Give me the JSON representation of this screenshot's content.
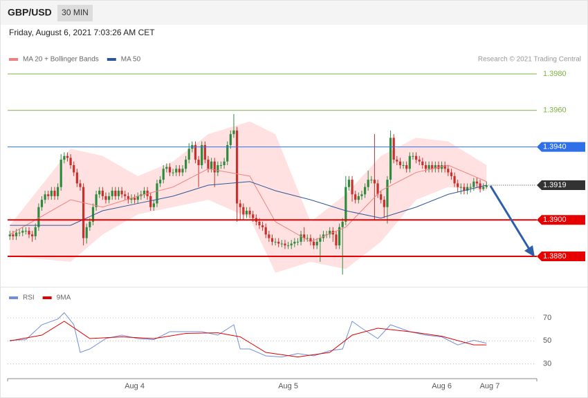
{
  "header": {
    "symbol": "GBP/USD",
    "interval": "30 MIN",
    "date": "Friday, August 6, 2021 7:03:26 AM CET"
  },
  "credit": "Research © 2021 Trading Central",
  "chart_data": [
    {
      "type": "candlestick",
      "xlim": [
        -0.7,
        164.5
      ],
      "ylim": [
        1.3865,
        1.3985
      ],
      "up_color": "#2e8b3e",
      "down_color": "#c9302c",
      "open": [
        1.3891,
        1.3892,
        1.3891,
        1.3893,
        1.3893,
        1.3894,
        1.3894,
        1.3892,
        1.3891,
        1.3896,
        1.3907,
        1.3911,
        1.3914,
        1.3913,
        1.3916,
        1.3913,
        1.3918,
        1.3933,
        1.3935,
        1.3934,
        1.393,
        1.3926,
        1.392,
        1.3918,
        1.389,
        1.3896,
        1.3899,
        1.3907,
        1.3914,
        1.3916,
        1.3913,
        1.3911,
        1.3913,
        1.3916,
        1.3913,
        1.3916,
        1.3914,
        1.3913,
        1.3911,
        1.3912,
        1.3911,
        1.3913,
        1.3914,
        1.3916,
        1.3913,
        1.3907,
        1.3909,
        1.392,
        1.3922,
        1.3928,
        1.3929,
        1.3926,
        1.3926,
        1.3928,
        1.3926,
        1.3928,
        1.3933,
        1.3939,
        1.3941,
        1.3933,
        1.393,
        1.3941,
        1.3933,
        1.3928,
        1.3932,
        1.3926,
        1.393,
        1.393,
        1.3932,
        1.3941,
        1.3947,
        1.3949,
        1.3909,
        1.3907,
        1.3903,
        1.3905,
        1.3903,
        1.3901,
        1.3899,
        1.3897,
        1.3896,
        1.3892,
        1.389,
        1.3888,
        1.3888,
        1.3887,
        1.3887,
        1.3886,
        1.3886,
        1.3887,
        1.3888,
        1.3888,
        1.3892,
        1.389,
        1.389,
        1.3888,
        1.3886,
        1.3888,
        1.389,
        1.3892,
        1.3892,
        1.3894,
        1.3892,
        1.3886,
        1.3896,
        1.3899,
        1.3918,
        1.3922,
        1.3914,
        1.3911,
        1.3913,
        1.3914,
        1.3918,
        1.3922,
        1.3922,
        1.392,
        1.3914,
        1.3911,
        1.3907,
        1.3922,
        1.3945,
        1.3933,
        1.3932,
        1.393,
        1.393,
        1.3928,
        1.3935,
        1.3935,
        1.3933,
        1.3932,
        1.393,
        1.3928,
        1.393,
        1.3928,
        1.393,
        1.3928,
        1.393,
        1.3928,
        1.3926,
        1.3924,
        1.392,
        1.3918,
        1.3918,
        1.3916,
        1.3918,
        1.3918,
        1.3921,
        1.392,
        1.3917,
        1.3918
      ],
      "high": [
        1.3894,
        1.3894,
        1.3895,
        1.3895,
        1.3896,
        1.3896,
        1.3896,
        1.3894,
        1.3898,
        1.3909,
        1.3913,
        1.3916,
        1.3916,
        1.3918,
        1.3918,
        1.392,
        1.3936,
        1.3937,
        1.3937,
        1.3936,
        1.3932,
        1.3928,
        1.3922,
        1.392,
        1.3898,
        1.3901,
        1.3909,
        1.3916,
        1.3918,
        1.3918,
        1.3915,
        1.3915,
        1.3918,
        1.3918,
        1.3918,
        1.3918,
        1.3916,
        1.3915,
        1.3914,
        1.3914,
        1.3915,
        1.3916,
        1.3918,
        1.3918,
        1.3915,
        1.3911,
        1.3922,
        1.3924,
        1.393,
        1.3931,
        1.3931,
        1.3928,
        1.393,
        1.393,
        1.393,
        1.3935,
        1.3942,
        1.3943,
        1.3943,
        1.3935,
        1.3943,
        1.3943,
        1.3935,
        1.3934,
        1.3934,
        1.3932,
        1.3932,
        1.3934,
        1.3943,
        1.3949,
        1.3958,
        1.3951,
        1.3911,
        1.3909,
        1.3907,
        1.3907,
        1.3905,
        1.3903,
        1.3901,
        1.3899,
        1.3898,
        1.3894,
        1.3892,
        1.389,
        1.389,
        1.3889,
        1.3889,
        1.3888,
        1.3889,
        1.389,
        1.389,
        1.3894,
        1.3896,
        1.3892,
        1.3892,
        1.389,
        1.389,
        1.3892,
        1.3894,
        1.3894,
        1.3896,
        1.3896,
        1.3894,
        1.3898,
        1.3901,
        1.3924,
        1.3924,
        1.3924,
        1.3916,
        1.3915,
        1.3916,
        1.392,
        1.3927,
        1.3924,
        1.3947,
        1.3922,
        1.3916,
        1.3913,
        1.3924,
        1.3949,
        1.3947,
        1.3935,
        1.3934,
        1.3932,
        1.3932,
        1.3937,
        1.3937,
        1.3937,
        1.3935,
        1.3934,
        1.3932,
        1.3932,
        1.3932,
        1.3932,
        1.3932,
        1.3932,
        1.3932,
        1.393,
        1.3928,
        1.3926,
        1.3922,
        1.392,
        1.392,
        1.392,
        1.392,
        1.3923,
        1.3923,
        1.3922,
        1.392,
        1.3921
      ],
      "low": [
        1.3889,
        1.3889,
        1.3889,
        1.3891,
        1.3891,
        1.3892,
        1.389,
        1.3888,
        1.3889,
        1.3894,
        1.3905,
        1.3909,
        1.3911,
        1.3911,
        1.3911,
        1.3911,
        1.3916,
        1.3931,
        1.3932,
        1.3928,
        1.3924,
        1.3918,
        1.3916,
        1.3886,
        1.3887,
        1.3894,
        1.3897,
        1.3905,
        1.3912,
        1.3911,
        1.3909,
        1.3909,
        1.3911,
        1.3911,
        1.3911,
        1.3912,
        1.3911,
        1.3909,
        1.3909,
        1.3909,
        1.3909,
        1.3911,
        1.3912,
        1.3911,
        1.3905,
        1.3905,
        1.3907,
        1.3918,
        1.392,
        1.3926,
        1.3924,
        1.3924,
        1.3924,
        1.3924,
        1.3924,
        1.3926,
        1.3931,
        1.3937,
        1.3931,
        1.3918,
        1.3928,
        1.3931,
        1.3926,
        1.3926,
        1.3918,
        1.3924,
        1.3928,
        1.3928,
        1.393,
        1.3939,
        1.3945,
        1.3899,
        1.39,
        1.39,
        1.3901,
        1.3901,
        1.3899,
        1.3897,
        1.3895,
        1.3894,
        1.389,
        1.3888,
        1.3886,
        1.3886,
        1.3885,
        1.3885,
        1.3884,
        1.3884,
        1.3884,
        1.3885,
        1.3886,
        1.3886,
        1.3888,
        1.3888,
        1.3886,
        1.3884,
        1.3884,
        1.3877,
        1.3888,
        1.389,
        1.389,
        1.3888,
        1.3884,
        1.3884,
        1.387,
        1.3897,
        1.3916,
        1.391,
        1.3909,
        1.3909,
        1.3911,
        1.3912,
        1.3916,
        1.392,
        1.39,
        1.3912,
        1.3909,
        1.3901,
        1.3898,
        1.392,
        1.3931,
        1.393,
        1.3928,
        1.3928,
        1.3926,
        1.3926,
        1.3933,
        1.3931,
        1.393,
        1.3928,
        1.3926,
        1.3926,
        1.3926,
        1.3926,
        1.3926,
        1.3926,
        1.3926,
        1.3924,
        1.3922,
        1.3918,
        1.3915,
        1.3914,
        1.3914,
        1.3914,
        1.3915,
        1.3916,
        1.3918,
        1.3915,
        1.3916,
        1.3917
      ],
      "close": [
        1.3892,
        1.3891,
        1.3893,
        1.3893,
        1.3894,
        1.3894,
        1.3892,
        1.3891,
        1.3896,
        1.3907,
        1.3911,
        1.3914,
        1.3913,
        1.3916,
        1.3913,
        1.3918,
        1.3933,
        1.3935,
        1.3934,
        1.393,
        1.3926,
        1.392,
        1.3918,
        1.389,
        1.3896,
        1.3899,
        1.3907,
        1.3914,
        1.3916,
        1.3913,
        1.3911,
        1.3913,
        1.3916,
        1.3913,
        1.3916,
        1.3914,
        1.3913,
        1.3911,
        1.3912,
        1.3911,
        1.3913,
        1.3914,
        1.3916,
        1.3913,
        1.3907,
        1.3909,
        1.392,
        1.3922,
        1.3928,
        1.3929,
        1.3926,
        1.3926,
        1.3928,
        1.3926,
        1.3928,
        1.3933,
        1.3939,
        1.3941,
        1.3933,
        1.393,
        1.3941,
        1.3933,
        1.3928,
        1.3932,
        1.3926,
        1.393,
        1.393,
        1.3932,
        1.3941,
        1.3947,
        1.3949,
        1.3909,
        1.3907,
        1.3903,
        1.3905,
        1.3903,
        1.3901,
        1.3899,
        1.3897,
        1.3896,
        1.3892,
        1.389,
        1.3888,
        1.3888,
        1.3887,
        1.3887,
        1.3886,
        1.3886,
        1.3887,
        1.3888,
        1.3888,
        1.3892,
        1.389,
        1.389,
        1.3888,
        1.3886,
        1.3888,
        1.389,
        1.3892,
        1.3892,
        1.3894,
        1.3892,
        1.3886,
        1.3896,
        1.3899,
        1.3918,
        1.3922,
        1.3914,
        1.3911,
        1.3913,
        1.3914,
        1.3918,
        1.3922,
        1.3922,
        1.392,
        1.3914,
        1.3911,
        1.3907,
        1.3922,
        1.3945,
        1.3933,
        1.3932,
        1.393,
        1.393,
        1.3928,
        1.3935,
        1.3935,
        1.3933,
        1.3932,
        1.393,
        1.3928,
        1.393,
        1.3928,
        1.393,
        1.3928,
        1.393,
        1.3928,
        1.3926,
        1.3924,
        1.392,
        1.3918,
        1.3918,
        1.3916,
        1.3918,
        1.3918,
        1.3921,
        1.392,
        1.3917,
        1.3918,
        1.3919
      ],
      "yticks": [
        {
          "value": 1.398,
          "label": "1.3980"
        },
        {
          "value": 1.396,
          "label": "1.3960"
        },
        {
          "value": 1.394,
          "label": "1.3940"
        },
        1.3919,
        {
          "value": 1.39,
          "label": "1.3900"
        },
        {
          "value": 1.388,
          "label": "1.3880"
        }
      ],
      "ytick_colors": [
        "#7cb342",
        "#7cb342",
        "#2f6fe8",
        "#333333",
        "#e60000",
        "#e60000"
      ],
      "ytick_styles": [
        "plain",
        "plain",
        "tag",
        "dotted",
        "bold-tag",
        "bold-tag"
      ],
      "series": [
        {
          "name": "MA 20 + Bollinger Bands",
          "color": "#f08080",
          "band_color": "#ffdcdc",
          "x": [
            0,
            19,
            29,
            40,
            51,
            62,
            75,
            83,
            94,
            105,
            116,
            127,
            137,
            149
          ],
          "values": [
            1.3892,
            1.3911,
            1.3907,
            1.3913,
            1.3918,
            1.3928,
            1.3924,
            1.3899,
            1.3888,
            1.3896,
            1.3916,
            1.3926,
            1.393,
            1.3921
          ],
          "upper": [
            1.3897,
            1.3939,
            1.3935,
            1.3924,
            1.3932,
            1.3947,
            1.3954,
            1.3947,
            1.3899,
            1.3914,
            1.3935,
            1.3945,
            1.3943,
            1.393
          ],
          "lower": [
            1.388,
            1.3877,
            1.3892,
            1.3903,
            1.3907,
            1.3911,
            1.3901,
            1.3871,
            1.3877,
            1.3873,
            1.3888,
            1.3911,
            1.3918,
            1.3916
          ]
        },
        {
          "name": "MA 50",
          "color": "#2b5797",
          "x": [
            0,
            19,
            29,
            40,
            51,
            62,
            75,
            83,
            94,
            105,
            116,
            127,
            137,
            149
          ],
          "values": [
            1.3897,
            1.3897,
            1.3905,
            1.3909,
            1.3913,
            1.3919,
            1.3921,
            1.3916,
            1.3911,
            1.3905,
            1.3901,
            1.3907,
            1.3914,
            1.3919
          ]
        }
      ]
    },
    {
      "type": "line",
      "xlim": [
        -0.7,
        164.5
      ],
      "ylim": [
        22,
        79
      ],
      "yticks": [
        30,
        50,
        70
      ],
      "grid": true,
      "xticks": [
        {
          "value": 39,
          "label": "Aug 4"
        },
        {
          "value": 87,
          "label": "Aug 5"
        },
        {
          "value": 135,
          "label": "Aug 6"
        },
        {
          "value": 150,
          "label": "Aug 7"
        }
      ],
      "series": [
        {
          "name": "RSI",
          "color": "#6f8fdc",
          "x": [
            0,
            5,
            10,
            15,
            17,
            20,
            22,
            25,
            30,
            35,
            40,
            45,
            50,
            55,
            60,
            65,
            70,
            72,
            75,
            80,
            85,
            90,
            95,
            100,
            104,
            107,
            110,
            115,
            119,
            125,
            130,
            135,
            140,
            145,
            149
          ],
          "values": [
            50.5,
            51,
            64,
            69,
            74.5,
            64,
            40,
            43,
            52,
            55,
            52,
            51,
            58,
            58,
            58,
            55,
            64,
            43,
            43,
            37,
            36,
            39,
            37,
            41.5,
            43,
            67,
            61,
            52,
            64,
            58,
            55,
            53.5,
            46.5,
            50.5,
            48
          ]
        },
        {
          "name": "9MA",
          "color": "#e00000",
          "x": [
            0,
            10,
            17,
            25,
            35,
            45,
            55,
            65,
            72,
            80,
            90,
            100,
            107,
            115,
            125,
            135,
            145,
            149
          ],
          "values": [
            50,
            55,
            67,
            52,
            53.5,
            52,
            56.5,
            57,
            53.5,
            40,
            36,
            40,
            55,
            61,
            58,
            54,
            46.5,
            46.5
          ]
        }
      ]
    }
  ]
}
